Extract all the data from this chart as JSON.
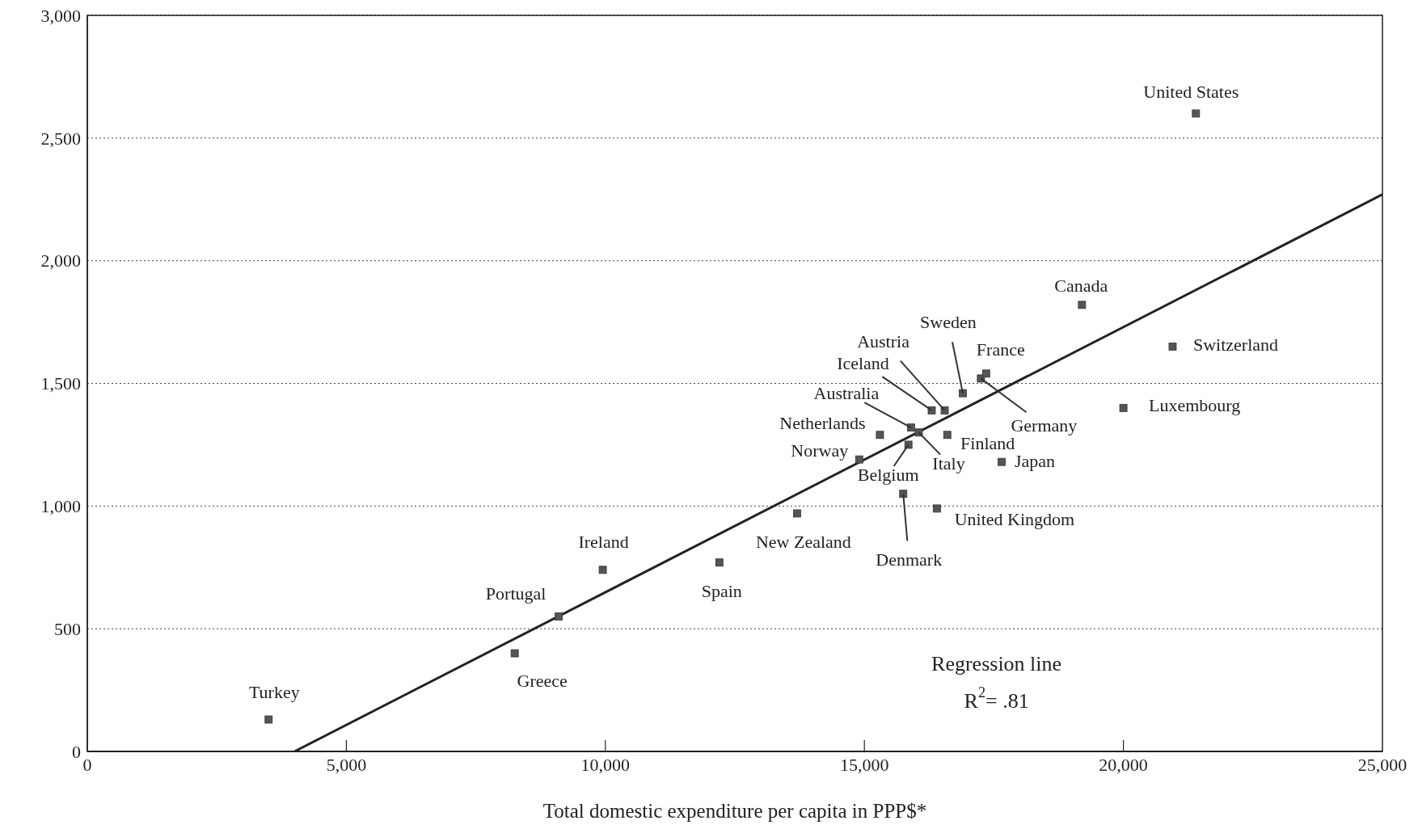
{
  "chart_data": {
    "type": "scatter",
    "xlabel": "Total domestic expenditure per capita in PPP$*",
    "xlim": [
      0,
      25000
    ],
    "ylim": [
      0,
      3000
    ],
    "xticks": [
      {
        "value": 0,
        "label": "0"
      },
      {
        "value": 5000,
        "label": "5,000"
      },
      {
        "value": 10000,
        "label": "10,000"
      },
      {
        "value": 15000,
        "label": "15,000"
      },
      {
        "value": 20000,
        "label": "20,000"
      },
      {
        "value": 25000,
        "label": "25,000"
      }
    ],
    "yticks": [
      {
        "value": 0,
        "label": "0"
      },
      {
        "value": 500,
        "label": "500"
      },
      {
        "value": 1000,
        "label": "1,000"
      },
      {
        "value": 1500,
        "label": "1,500"
      },
      {
        "value": 2000,
        "label": "2,000"
      },
      {
        "value": 2500,
        "label": "2,500"
      },
      {
        "value": 3000,
        "label": "3,000"
      }
    ],
    "grid": "y",
    "marker": "square",
    "series": [
      {
        "color": "#555555",
        "x": [
          3500,
          8250,
          9100,
          9950,
          12200,
          13700,
          14900,
          15300,
          15850,
          15900,
          16050,
          15750,
          16400,
          16300,
          16550,
          16600,
          16900,
          17250,
          17350,
          17650,
          19200,
          20000,
          20950,
          21400
        ],
        "values": [
          130,
          400,
          550,
          740,
          770,
          970,
          1190,
          1290,
          1250,
          1320,
          1300,
          1050,
          990,
          1390,
          1390,
          1290,
          1460,
          1520,
          1540,
          1180,
          1820,
          1400,
          1650,
          2600
        ]
      },
      {
        "type": "line",
        "marker": "none",
        "color": "#222222",
        "x": [
          4000,
          25000
        ],
        "values": [
          0,
          2270
        ]
      }
    ],
    "annotations": [
      {
        "text": "Turkey",
        "x": 3500,
        "y": 130
      },
      {
        "text": "Greece",
        "x": 8250,
        "y": 400
      },
      {
        "text": "Portugal",
        "x": 9100,
        "y": 550
      },
      {
        "text": "Ireland",
        "x": 9950,
        "y": 740
      },
      {
        "text": "Spain",
        "x": 12200,
        "y": 770
      },
      {
        "text": "New Zealand",
        "x": 13700,
        "y": 970
      },
      {
        "text": "Norway",
        "x": 14900,
        "y": 1190
      },
      {
        "text": "Netherlands",
        "x": 15300,
        "y": 1290
      },
      {
        "text": "Belgium",
        "x": 15850,
        "y": 1250
      },
      {
        "text": "Australia",
        "x": 15900,
        "y": 1320
      },
      {
        "text": "Italy",
        "x": 16050,
        "y": 1300
      },
      {
        "text": "Denmark",
        "x": 15750,
        "y": 1050
      },
      {
        "text": "United Kingdom",
        "x": 16400,
        "y": 990
      },
      {
        "text": "Iceland",
        "x": 16300,
        "y": 1390
      },
      {
        "text": "Austria",
        "x": 16550,
        "y": 1390
      },
      {
        "text": "Finland",
        "x": 16600,
        "y": 1290
      },
      {
        "text": "Sweden",
        "x": 16900,
        "y": 1460
      },
      {
        "text": "France",
        "x": 17350,
        "y": 1540
      },
      {
        "text": "Germany",
        "x": 17250,
        "y": 1520
      },
      {
        "text": "Japan",
        "x": 17650,
        "y": 1180
      },
      {
        "text": "Canada",
        "x": 19200,
        "y": 1820
      },
      {
        "text": "Luxembourg",
        "x": 20000,
        "y": 1400
      },
      {
        "text": "Switzerland",
        "x": 20950,
        "y": 1650
      },
      {
        "text": "United States",
        "x": 21400,
        "y": 2600
      },
      "Regression line",
      "R$^{2}$= .81"
    ]
  }
}
